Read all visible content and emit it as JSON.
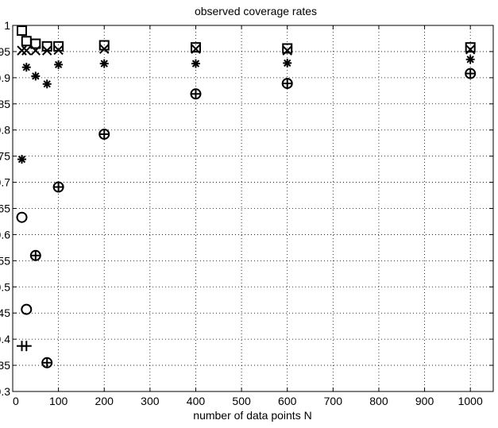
{
  "chart_data": {
    "type": "scatter",
    "title": "observed coverage rates",
    "xlabel": "number of data points N",
    "ylabel": "",
    "xlim": [
      0,
      1050
    ],
    "ylim": [
      0.3,
      1.0
    ],
    "xticks": [
      0,
      100,
      200,
      300,
      400,
      500,
      600,
      700,
      800,
      900,
      1000
    ],
    "yticks": [
      0.3,
      0.35,
      0.4,
      0.45,
      0.5,
      0.55,
      0.6,
      0.65,
      0.7,
      0.75,
      0.8,
      0.85,
      0.9,
      0.95,
      1.0
    ],
    "ytick_labels": [
      "0.3",
      "0.35",
      "0.4",
      "0.45",
      "0.5",
      "0.55",
      "0.6",
      "0.65",
      "0.7",
      "0.75",
      "0.8",
      "0.85",
      "0.9",
      "0.95",
      "1"
    ],
    "grid": true,
    "legend": "none",
    "series": [
      {
        "marker": "square",
        "x": [
          20,
          30,
          50,
          75,
          100,
          200,
          400,
          600,
          1000
        ],
        "y": [
          0.99,
          0.97,
          0.965,
          0.96,
          0.96,
          0.962,
          0.958,
          0.956,
          0.958
        ]
      },
      {
        "marker": "x",
        "x": [
          20,
          30,
          50,
          75,
          100,
          200,
          400,
          600,
          1000
        ],
        "y": [
          0.952,
          0.952,
          0.952,
          0.952,
          0.953,
          0.955,
          0.955,
          0.952,
          0.954
        ]
      },
      {
        "marker": "asterisk",
        "x": [
          20,
          30,
          50,
          75,
          100,
          200,
          400,
          600,
          1000
        ],
        "y": [
          0.744,
          0.92,
          0.903,
          0.888,
          0.925,
          0.927,
          0.927,
          0.928,
          0.935
        ]
      },
      {
        "marker": "circle",
        "x": [
          20,
          30,
          50,
          75,
          100,
          200,
          400,
          600,
          1000
        ],
        "y": [
          0.633,
          0.457,
          0.56,
          0.355,
          0.691,
          0.792,
          0.869,
          0.889,
          0.908
        ]
      },
      {
        "marker": "plus",
        "x": [
          20,
          30,
          50,
          75,
          100,
          200,
          400,
          600,
          1000
        ],
        "y": [
          0.387,
          0.387,
          0.56,
          0.355,
          0.691,
          0.792,
          0.869,
          0.889,
          0.908
        ]
      }
    ]
  }
}
